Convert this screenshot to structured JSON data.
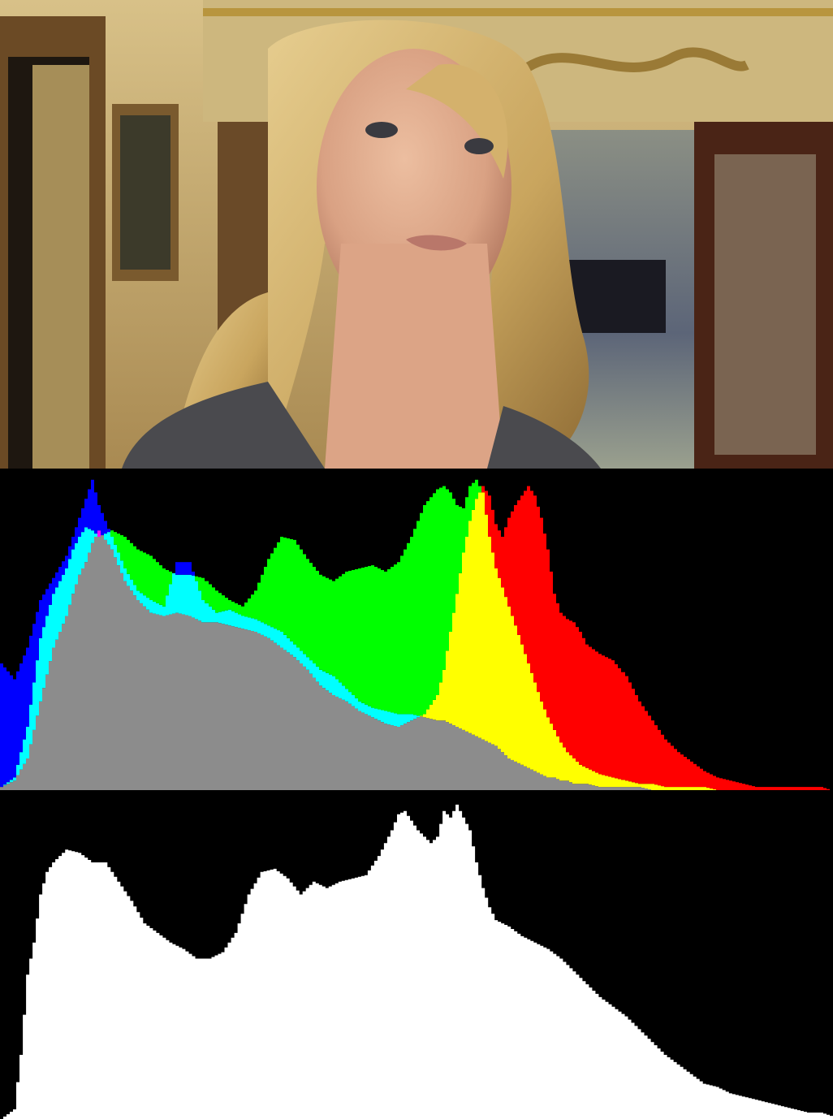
{
  "photo": {
    "subject": "woman portrait",
    "palette": {
      "wall": "#c9b07a",
      "wall_dark": "#8a6a3a",
      "gold": "#b8953e",
      "hair": "#c9a55e",
      "hair_light": "#e6cd8f",
      "skin": "#e0ad90",
      "skin_shadow": "#b97f66",
      "jacket": "#4a4a4e",
      "door": "#5a2a1a",
      "room": "#6f7a8a"
    }
  },
  "chart_data": [
    {
      "type": "area",
      "variant": "rgb-histogram",
      "xlim": [
        0,
        255
      ],
      "ylim": [
        0,
        100
      ],
      "grid": false,
      "legend": "none",
      "colors": {
        "red": "#ff0000",
        "green": "#00ff00",
        "blue": "#0000ff",
        "yellow": "#ffff00",
        "cyan": "#00ffff",
        "magenta": "#ff00ff",
        "overlap": "#8c8c8c"
      },
      "x": [
        0,
        4,
        8,
        12,
        16,
        20,
        22,
        24,
        26,
        28,
        30,
        34,
        38,
        42,
        46,
        50,
        54,
        58,
        62,
        66,
        70,
        74,
        78,
        82,
        86,
        90,
        94,
        98,
        102,
        106,
        110,
        114,
        118,
        122,
        126,
        130,
        134,
        136,
        138,
        140,
        142,
        144,
        146,
        148,
        150,
        152,
        154,
        156,
        158,
        160,
        162,
        164,
        166,
        168,
        170,
        172,
        174,
        176,
        178,
        180,
        184,
        188,
        192,
        196,
        200,
        204,
        208,
        212,
        216,
        220,
        224,
        228,
        232,
        236,
        240,
        244,
        248,
        252,
        255
      ],
      "series": [
        {
          "channel": "red",
          "values": [
            1,
            3,
            10,
            28,
            45,
            55,
            62,
            68,
            72,
            78,
            82,
            76,
            66,
            60,
            56,
            55,
            56,
            55,
            53,
            53,
            52,
            51,
            50,
            48,
            45,
            42,
            38,
            33,
            30,
            28,
            25,
            23,
            21,
            20,
            22,
            24,
            30,
            38,
            50,
            62,
            75,
            85,
            92,
            96,
            93,
            84,
            80,
            86,
            90,
            93,
            96,
            93,
            86,
            76,
            62,
            56,
            54,
            53,
            50,
            46,
            43,
            41,
            36,
            28,
            22,
            16,
            12,
            9,
            6,
            4,
            3,
            2,
            1,
            1,
            1,
            1,
            1,
            1,
            0
          ]
        },
        {
          "channel": "green",
          "values": [
            1,
            4,
            20,
            48,
            62,
            70,
            76,
            80,
            83,
            82,
            80,
            82,
            80,
            76,
            74,
            70,
            68,
            68,
            67,
            63,
            60,
            58,
            63,
            73,
            80,
            79,
            73,
            68,
            66,
            69,
            70,
            71,
            69,
            72,
            80,
            90,
            95,
            96,
            94,
            90,
            89,
            96,
            98,
            94,
            80,
            70,
            64,
            58,
            52,
            46,
            40,
            34,
            28,
            23,
            19,
            15,
            12,
            10,
            8,
            7,
            5,
            4,
            3,
            2,
            2,
            1,
            1,
            1,
            1,
            0,
            0,
            0,
            0,
            0,
            0,
            0,
            0,
            0,
            0
          ]
        },
        {
          "channel": "blue",
          "values": [
            40,
            35,
            45,
            60,
            67,
            74,
            80,
            86,
            92,
            98,
            90,
            80,
            70,
            63,
            60,
            58,
            72,
            72,
            60,
            56,
            57,
            55,
            54,
            52,
            50,
            46,
            42,
            38,
            36,
            32,
            28,
            26,
            25,
            24,
            24,
            23,
            22,
            22,
            21,
            20,
            19,
            18,
            17,
            16,
            15,
            14,
            12,
            10,
            9,
            8,
            7,
            6,
            5,
            4,
            4,
            3,
            3,
            2,
            2,
            2,
            1,
            1,
            1,
            1,
            0,
            0,
            0,
            0,
            0,
            0,
            0,
            0,
            0,
            0,
            0,
            0,
            0,
            0,
            0
          ]
        }
      ]
    },
    {
      "type": "area",
      "variant": "luminance-histogram",
      "xlim": [
        0,
        255
      ],
      "ylim": [
        0,
        100
      ],
      "grid": false,
      "legend": "none",
      "color": "#ffffff",
      "x": [
        0,
        4,
        6,
        8,
        10,
        12,
        14,
        16,
        18,
        20,
        24,
        28,
        32,
        36,
        40,
        44,
        48,
        52,
        56,
        60,
        64,
        68,
        72,
        76,
        80,
        84,
        88,
        92,
        96,
        100,
        104,
        108,
        112,
        116,
        120,
        122,
        124,
        126,
        128,
        130,
        132,
        134,
        136,
        138,
        140,
        142,
        144,
        146,
        148,
        150,
        152,
        156,
        160,
        164,
        168,
        172,
        176,
        180,
        184,
        188,
        192,
        196,
        200,
        204,
        208,
        212,
        216,
        220,
        224,
        228,
        232,
        236,
        240,
        244,
        248,
        252,
        255
      ],
      "values": [
        0,
        3,
        20,
        45,
        55,
        70,
        77,
        80,
        82,
        84,
        83,
        80,
        80,
        74,
        68,
        61,
        58,
        55,
        53,
        50,
        50,
        52,
        58,
        70,
        77,
        78,
        75,
        70,
        74,
        72,
        74,
        75,
        76,
        82,
        90,
        95,
        96,
        93,
        90,
        88,
        86,
        88,
        96,
        94,
        98,
        94,
        90,
        80,
        72,
        66,
        62,
        60,
        57,
        55,
        53,
        50,
        46,
        42,
        38,
        35,
        32,
        28,
        24,
        20,
        17,
        14,
        11,
        10,
        8,
        7,
        6,
        5,
        4,
        3,
        2,
        2,
        1
      ]
    }
  ]
}
